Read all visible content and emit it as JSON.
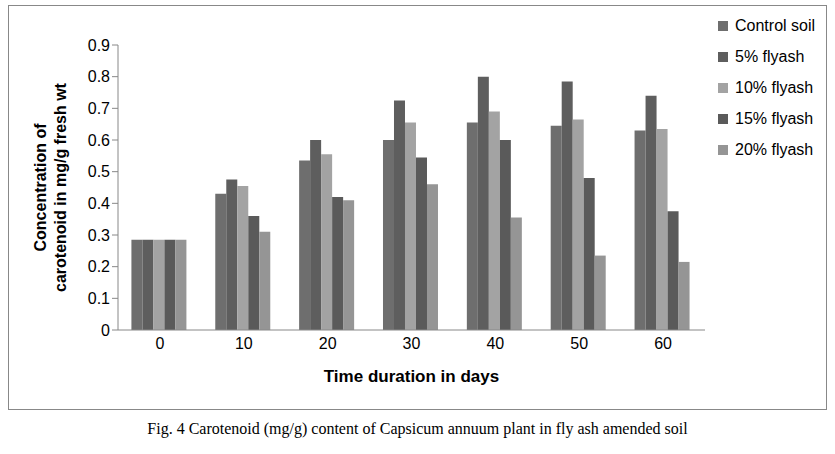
{
  "chart_data": {
    "type": "bar",
    "title": "Fig. 4 Carotenoid (mg/g) content of Capsicum annuum plant in fly ash amended soil",
    "x_label": "Time duration in days",
    "y_label": "Concentration of carotenoid in mg/g fresh wt",
    "categories": [
      "0",
      "10",
      "20",
      "30",
      "40",
      "50",
      "60"
    ],
    "series": [
      {
        "name": "Control soil",
        "color": "#6e6e6e",
        "values": [
          0.285,
          0.43,
          0.535,
          0.6,
          0.655,
          0.645,
          0.63
        ]
      },
      {
        "name": "5% flyash",
        "color": "#5e5e5e",
        "values": [
          0.285,
          0.475,
          0.6,
          0.725,
          0.8,
          0.785,
          0.74
        ]
      },
      {
        "name": "10% flyash",
        "color": "#a3a3a3",
        "values": [
          0.285,
          0.455,
          0.555,
          0.655,
          0.69,
          0.665,
          0.635
        ]
      },
      {
        "name": "15% flyash",
        "color": "#5a5a5a",
        "values": [
          0.285,
          0.36,
          0.42,
          0.545,
          0.6,
          0.48,
          0.375
        ]
      },
      {
        "name": "20% flyash",
        "color": "#959595",
        "values": [
          0.285,
          0.31,
          0.41,
          0.46,
          0.355,
          0.235,
          0.215
        ]
      }
    ],
    "ylim": [
      0,
      0.9
    ],
    "yticks": [
      0,
      0.1,
      0.2,
      0.3,
      0.4,
      0.5,
      0.6,
      0.7,
      0.8,
      0.9
    ],
    "grid": false,
    "legend": "right"
  }
}
